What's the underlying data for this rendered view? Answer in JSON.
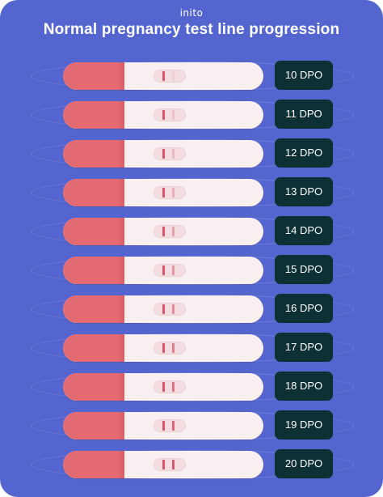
{
  "brand": "inito",
  "title": "Normal pregnancy test line progression",
  "colors": {
    "background": "#5565d0",
    "strip_cap": "#e36a72",
    "strip_body": "#f9eef0",
    "test_line": "#d9576a",
    "label_bg": "#0d3034"
  },
  "tests": [
    {
      "label": "10 DPO",
      "test_line_intensity": 0.12
    },
    {
      "label": "11 DPO",
      "test_line_intensity": 0.2
    },
    {
      "label": "12 DPO",
      "test_line_intensity": 0.28
    },
    {
      "label": "13 DPO",
      "test_line_intensity": 0.36
    },
    {
      "label": "14 DPO",
      "test_line_intensity": 0.45
    },
    {
      "label": "15 DPO",
      "test_line_intensity": 0.54
    },
    {
      "label": "16 DPO",
      "test_line_intensity": 0.63
    },
    {
      "label": "17 DPO",
      "test_line_intensity": 0.72
    },
    {
      "label": "18 DPO",
      "test_line_intensity": 0.81
    },
    {
      "label": "19 DPO",
      "test_line_intensity": 0.9
    },
    {
      "label": "20 DPO",
      "test_line_intensity": 1.0
    }
  ]
}
